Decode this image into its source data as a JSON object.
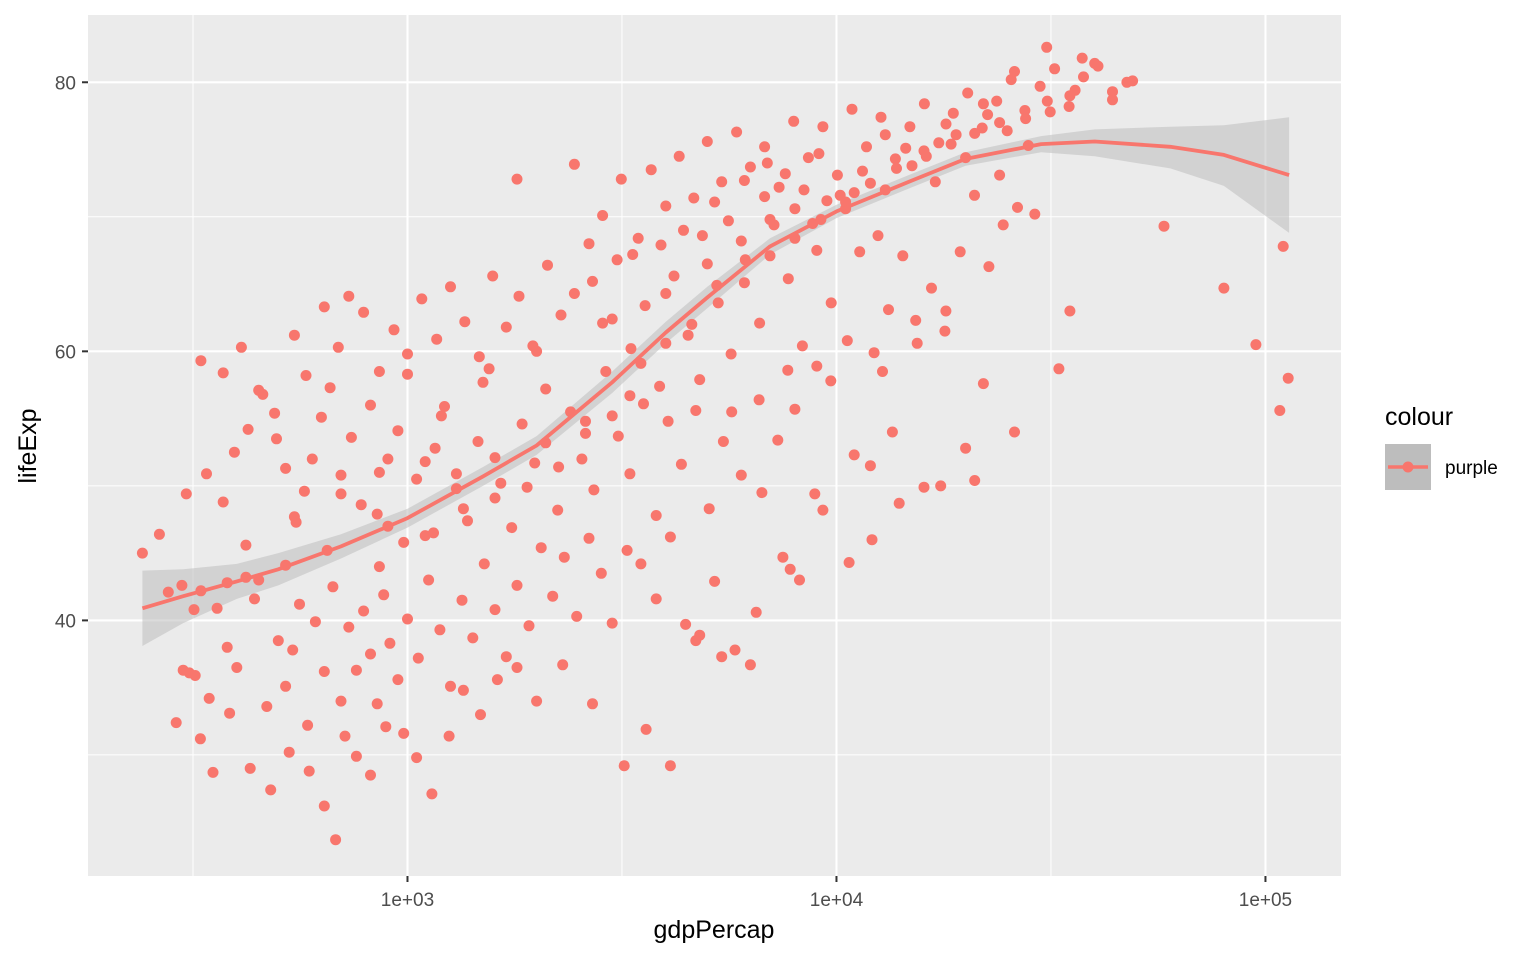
{
  "chart_data": {
    "type": "scatter",
    "title": "",
    "xlabel": "gdpPercap",
    "ylabel": "lifeExp",
    "x_scale": "log10",
    "xlim": [
      180,
      150000
    ],
    "ylim": [
      21,
      85
    ],
    "x_ticks": [
      1000,
      10000,
      100000
    ],
    "x_tick_labels": [
      "1e+03",
      "1e+04",
      "1e+05"
    ],
    "y_ticks": [
      40,
      60,
      80
    ],
    "y_tick_labels": [
      "40",
      "60",
      "80"
    ],
    "grid": true,
    "point_color": "#F8766D",
    "smooth_color": "#F8766D",
    "ribbon_color": "#bdbdbd",
    "panel_background": "#EBEBEB",
    "legend": {
      "title": "colour",
      "position": "right",
      "entries": [
        "purple"
      ]
    },
    "smooth": {
      "x": [
        241,
        300,
        400,
        500,
        700,
        1000,
        1500,
        2000,
        3000,
        4000,
        5000,
        7000,
        10000,
        15000,
        20000,
        30000,
        40000,
        60000,
        80000,
        113500
      ],
      "y": [
        40.9,
        41.8,
        42.9,
        43.8,
        45.5,
        47.6,
        50.7,
        53.0,
        57.7,
        61.4,
        64.0,
        67.8,
        70.4,
        72.7,
        74.3,
        75.4,
        75.6,
        75.2,
        74.6,
        73.1
      ],
      "upper": [
        43.7,
        43.8,
        44.2,
        45.0,
        46.4,
        48.3,
        51.4,
        53.7,
        58.5,
        62.2,
        64.8,
        68.4,
        70.9,
        73.2,
        74.8,
        76.0,
        76.5,
        76.7,
        76.8,
        77.4
      ],
      "lower": [
        38.1,
        39.8,
        41.6,
        42.6,
        44.6,
        46.9,
        50.0,
        52.3,
        56.9,
        60.6,
        63.2,
        67.2,
        69.9,
        72.2,
        73.8,
        74.8,
        74.5,
        73.6,
        72.3,
        68.8
      ]
    },
    "points": [
      [
        241,
        45.0
      ],
      [
        277,
        42.1
      ],
      [
        298,
        42.6
      ],
      [
        310,
        36.1
      ],
      [
        318,
        40.8
      ],
      [
        320,
        35.9
      ],
      [
        330,
        42.2
      ],
      [
        345,
        34.2
      ],
      [
        360,
        40.9
      ],
      [
        380,
        38.0
      ],
      [
        400,
        36.5
      ],
      [
        420,
        43.2
      ],
      [
        440,
        41.6
      ],
      [
        470,
        33.6
      ],
      [
        500,
        38.5
      ],
      [
        520,
        35.1
      ],
      [
        540,
        37.8
      ],
      [
        560,
        41.2
      ],
      [
        585,
        32.2
      ],
      [
        610,
        39.9
      ],
      [
        640,
        36.2
      ],
      [
        670,
        42.5
      ],
      [
        700,
        34.0
      ],
      [
        730,
        39.5
      ],
      [
        760,
        36.3
      ],
      [
        790,
        40.7
      ],
      [
        820,
        37.5
      ],
      [
        850,
        33.8
      ],
      [
        880,
        41.9
      ],
      [
        910,
        38.3
      ],
      [
        950,
        35.6
      ],
      [
        1000,
        40.1
      ],
      [
        1060,
        37.2
      ],
      [
        1120,
        43.0
      ],
      [
        1190,
        39.3
      ],
      [
        1260,
        35.1
      ],
      [
        1340,
        41.5
      ],
      [
        1420,
        38.7
      ],
      [
        1510,
        44.2
      ],
      [
        1600,
        40.8
      ],
      [
        1700,
        37.3
      ],
      [
        1800,
        42.6
      ],
      [
        1920,
        39.6
      ],
      [
        2050,
        45.4
      ],
      [
        2180,
        41.8
      ],
      [
        2320,
        44.7
      ],
      [
        2480,
        40.3
      ],
      [
        2650,
        46.1
      ],
      [
        2830,
        43.5
      ],
      [
        3000,
        39.8
      ],
      [
        3250,
        45.2
      ],
      [
        3500,
        44.2
      ],
      [
        3800,
        41.6
      ],
      [
        4100,
        46.2
      ],
      [
        4450,
        39.7
      ],
      [
        4800,
        38.9
      ],
      [
        5200,
        42.9
      ],
      [
        5800,
        37.8
      ],
      [
        6500,
        40.6
      ],
      [
        7500,
        44.7
      ],
      [
        8200,
        43.0
      ],
      [
        9300,
        48.2
      ],
      [
        10700,
        44.3
      ],
      [
        12100,
        46.0
      ],
      [
        14000,
        48.7
      ],
      [
        17500,
        50.0
      ],
      [
        21000,
        50.4
      ],
      [
        264,
        46.4
      ],
      [
        289,
        32.4
      ],
      [
        300,
        36.3
      ],
      [
        329,
        31.2
      ],
      [
        352,
        28.7
      ],
      [
        385,
        33.1
      ],
      [
        430,
        29.0
      ],
      [
        480,
        27.4
      ],
      [
        530,
        30.2
      ],
      [
        590,
        28.8
      ],
      [
        640,
        26.2
      ],
      [
        680,
        23.7
      ],
      [
        715,
        31.4
      ],
      [
        760,
        29.9
      ],
      [
        820,
        28.5
      ],
      [
        890,
        32.1
      ],
      [
        980,
        31.6
      ],
      [
        1050,
        29.8
      ],
      [
        1140,
        27.1
      ],
      [
        1250,
        31.4
      ],
      [
        1350,
        34.8
      ],
      [
        1480,
        33.0
      ],
      [
        1620,
        35.6
      ],
      [
        1800,
        36.5
      ],
      [
        2000,
        34.0
      ],
      [
        2300,
        36.7
      ],
      [
        2700,
        33.8
      ],
      [
        3200,
        29.2
      ],
      [
        3600,
        31.9
      ],
      [
        4100,
        29.2
      ],
      [
        4700,
        38.5
      ],
      [
        5400,
        37.3
      ],
      [
        6300,
        36.7
      ],
      [
        7800,
        43.8
      ],
      [
        305,
        49.4
      ],
      [
        340,
        50.9
      ],
      [
        372,
        48.8
      ],
      [
        395,
        52.5
      ],
      [
        425,
        54.2
      ],
      [
        460,
        56.8
      ],
      [
        495,
        53.5
      ],
      [
        520,
        51.3
      ],
      [
        545,
        47.7
      ],
      [
        575,
        49.6
      ],
      [
        600,
        52.0
      ],
      [
        630,
        55.1
      ],
      [
        660,
        57.3
      ],
      [
        700,
        50.8
      ],
      [
        740,
        53.6
      ],
      [
        780,
        48.6
      ],
      [
        820,
        56.0
      ],
      [
        860,
        51.0
      ],
      [
        900,
        47.0
      ],
      [
        950,
        54.1
      ],
      [
        1000,
        58.3
      ],
      [
        1050,
        50.5
      ],
      [
        1100,
        46.3
      ],
      [
        1160,
        52.8
      ],
      [
        1220,
        55.9
      ],
      [
        1300,
        49.8
      ],
      [
        1380,
        47.4
      ],
      [
        1460,
        53.3
      ],
      [
        1550,
        58.7
      ],
      [
        1650,
        50.2
      ],
      [
        1750,
        46.9
      ],
      [
        1850,
        54.6
      ],
      [
        1980,
        51.7
      ],
      [
        2100,
        57.2
      ],
      [
        2240,
        48.2
      ],
      [
        2400,
        55.5
      ],
      [
        2550,
        52.0
      ],
      [
        2720,
        49.7
      ],
      [
        2900,
        58.5
      ],
      [
        3100,
        53.7
      ],
      [
        3300,
        50.9
      ],
      [
        3550,
        56.1
      ],
      [
        3800,
        47.8
      ],
      [
        4050,
        54.8
      ],
      [
        4350,
        51.6
      ],
      [
        4700,
        55.6
      ],
      [
        5050,
        48.3
      ],
      [
        5450,
        53.3
      ],
      [
        6000,
        50.8
      ],
      [
        6700,
        49.5
      ],
      [
        7300,
        53.4
      ],
      [
        8000,
        55.7
      ],
      [
        8900,
        49.4
      ],
      [
        9700,
        57.8
      ],
      [
        11000,
        52.3
      ],
      [
        12000,
        51.5
      ],
      [
        13500,
        54.0
      ],
      [
        16000,
        49.9
      ],
      [
        20000,
        52.8
      ],
      [
        22000,
        57.6
      ],
      [
        26000,
        54.0
      ],
      [
        33000,
        58.7
      ],
      [
        330,
        59.3
      ],
      [
        372,
        58.4
      ],
      [
        410,
        60.3
      ],
      [
        450,
        57.1
      ],
      [
        490,
        55.4
      ],
      [
        545,
        61.2
      ],
      [
        580,
        58.2
      ],
      [
        640,
        63.3
      ],
      [
        690,
        60.3
      ],
      [
        730,
        64.1
      ],
      [
        790,
        62.9
      ],
      [
        860,
        58.5
      ],
      [
        930,
        61.6
      ],
      [
        1000,
        59.8
      ],
      [
        1080,
        63.9
      ],
      [
        1170,
        60.9
      ],
      [
        1260,
        64.8
      ],
      [
        1360,
        62.2
      ],
      [
        1470,
        59.6
      ],
      [
        1580,
        65.6
      ],
      [
        1700,
        61.8
      ],
      [
        1820,
        64.1
      ],
      [
        1960,
        60.4
      ],
      [
        2120,
        66.4
      ],
      [
        2280,
        62.7
      ],
      [
        2450,
        64.3
      ],
      [
        2650,
        68.0
      ],
      [
        2850,
        62.1
      ],
      [
        3080,
        66.8
      ],
      [
        3320,
        60.2
      ],
      [
        3580,
        63.4
      ],
      [
        3870,
        57.4
      ],
      [
        4180,
        65.6
      ],
      [
        4510,
        61.2
      ],
      [
        4870,
        68.6
      ],
      [
        5260,
        64.9
      ],
      [
        5680,
        59.8
      ],
      [
        6130,
        66.8
      ],
      [
        6620,
        62.1
      ],
      [
        7150,
        69.4
      ],
      [
        7720,
        65.4
      ],
      [
        8330,
        60.4
      ],
      [
        9000,
        67.5
      ],
      [
        9720,
        63.6
      ],
      [
        10500,
        70.6
      ],
      [
        11330,
        67.4
      ],
      [
        12240,
        59.9
      ],
      [
        13220,
        63.1
      ],
      [
        14280,
        67.1
      ],
      [
        15420,
        60.6
      ],
      [
        16650,
        64.7
      ],
      [
        17990,
        63.0
      ],
      [
        19430,
        67.4
      ],
      [
        20980,
        71.6
      ],
      [
        22660,
        66.3
      ],
      [
        24470,
        69.4
      ],
      [
        26430,
        70.7
      ],
      [
        29000,
        70.2
      ],
      [
        35000,
        63.0
      ],
      [
        58000,
        69.3
      ],
      [
        80000,
        64.7
      ],
      [
        95000,
        60.5
      ],
      [
        108000,
        55.6
      ],
      [
        110000,
        67.8
      ],
      [
        113000,
        58.0
      ],
      [
        1800,
        72.8
      ],
      [
        2450,
        73.9
      ],
      [
        2850,
        70.1
      ],
      [
        3150,
        72.8
      ],
      [
        3450,
        68.4
      ],
      [
        3700,
        73.5
      ],
      [
        4000,
        70.8
      ],
      [
        4300,
        74.5
      ],
      [
        4650,
        71.4
      ],
      [
        5000,
        75.6
      ],
      [
        5400,
        72.6
      ],
      [
        5850,
        76.3
      ],
      [
        6300,
        73.7
      ],
      [
        6800,
        75.2
      ],
      [
        7350,
        72.2
      ],
      [
        7950,
        77.1
      ],
      [
        8600,
        74.4
      ],
      [
        9300,
        76.7
      ],
      [
        10050,
        73.1
      ],
      [
        10870,
        78.0
      ],
      [
        11750,
        75.2
      ],
      [
        12700,
        77.4
      ],
      [
        13720,
        74.3
      ],
      [
        14830,
        76.7
      ],
      [
        16030,
        78.4
      ],
      [
        17320,
        75.5
      ],
      [
        18720,
        77.7
      ],
      [
        20230,
        79.2
      ],
      [
        21860,
        76.6
      ],
      [
        23630,
        78.6
      ],
      [
        25540,
        80.2
      ],
      [
        27600,
        77.3
      ],
      [
        29830,
        79.7
      ],
      [
        32240,
        81.0
      ],
      [
        34850,
        78.2
      ],
      [
        37660,
        80.4
      ],
      [
        40700,
        81.2
      ],
      [
        43990,
        79.3
      ],
      [
        47540,
        80.0
      ],
      [
        49000,
        80.1
      ],
      [
        30900,
        82.6
      ],
      [
        37400,
        81.8
      ],
      [
        40000,
        81.4
      ],
      [
        36000,
        79.4
      ],
      [
        26000,
        80.8
      ],
      [
        22000,
        78.4
      ],
      [
        19000,
        76.1
      ],
      [
        15000,
        73.8
      ],
      [
        13000,
        72.0
      ],
      [
        11000,
        71.8
      ],
      [
        9500,
        71.2
      ],
      [
        8000,
        70.6
      ],
      [
        7000,
        69.8
      ],
      [
        6000,
        68.2
      ],
      [
        5000,
        66.5
      ],
      [
        4000,
        64.3
      ],
      [
        3000,
        62.4
      ],
      [
        2000,
        60.0
      ],
      [
        1500,
        57.7
      ],
      [
        1200,
        55.2
      ],
      [
        900,
        52.0
      ],
      [
        700,
        49.4
      ],
      [
        550,
        47.3
      ],
      [
        420,
        45.6
      ],
      [
        3900,
        67.9
      ],
      [
        4400,
        69.0
      ],
      [
        5200,
        71.1
      ],
      [
        6100,
        72.7
      ],
      [
        6900,
        74.0
      ],
      [
        7600,
        73.2
      ],
      [
        8400,
        72.0
      ],
      [
        9100,
        74.7
      ],
      [
        10200,
        71.6
      ],
      [
        11500,
        73.4
      ],
      [
        13000,
        76.1
      ],
      [
        14500,
        75.1
      ],
      [
        16200,
        74.5
      ],
      [
        18000,
        76.9
      ],
      [
        20000,
        74.4
      ],
      [
        22500,
        77.6
      ],
      [
        25000,
        76.4
      ],
      [
        28000,
        75.3
      ],
      [
        31500,
        77.8
      ],
      [
        2700,
        65.2
      ],
      [
        3350,
        67.2
      ],
      [
        5600,
        69.7
      ],
      [
        6800,
        71.5
      ],
      [
        8800,
        69.5
      ],
      [
        12500,
        68.6
      ],
      [
        17000,
        72.6
      ],
      [
        24000,
        73.1
      ],
      [
        4800,
        57.9
      ],
      [
        5700,
        55.5
      ],
      [
        6600,
        56.4
      ],
      [
        7700,
        58.6
      ],
      [
        9000,
        58.9
      ],
      [
        10600,
        60.8
      ],
      [
        12800,
        58.5
      ],
      [
        15300,
        62.3
      ],
      [
        17900,
        61.5
      ],
      [
        3300,
        56.7
      ],
      [
        2600,
        54.8
      ],
      [
        2100,
        53.2
      ],
      [
        1600,
        52.1
      ],
      [
        1300,
        50.9
      ],
      [
        1100,
        51.8
      ],
      [
        850,
        47.9
      ],
      [
        650,
        45.2
      ],
      [
        520,
        44.1
      ],
      [
        450,
        43.0
      ],
      [
        380,
        42.8
      ],
      [
        860,
        44.0
      ],
      [
        980,
        45.8
      ],
      [
        1150,
        46.5
      ],
      [
        1350,
        48.3
      ],
      [
        1600,
        49.1
      ],
      [
        1900,
        49.9
      ],
      [
        2250,
        51.4
      ],
      [
        2600,
        53.9
      ],
      [
        3000,
        55.2
      ],
      [
        3500,
        59.1
      ],
      [
        4000,
        60.6
      ],
      [
        4600,
        62.0
      ],
      [
        5300,
        63.6
      ],
      [
        6100,
        65.1
      ],
      [
        7000,
        67.1
      ],
      [
        8000,
        68.4
      ],
      [
        9200,
        69.8
      ],
      [
        10500,
        71.1
      ],
      [
        12000,
        72.5
      ],
      [
        13800,
        73.6
      ],
      [
        16000,
        74.9
      ],
      [
        18500,
        75.4
      ],
      [
        21000,
        76.2
      ],
      [
        24000,
        77.0
      ],
      [
        27500,
        77.9
      ],
      [
        31000,
        78.6
      ],
      [
        35000,
        79.0
      ],
      [
        44000,
        78.7
      ]
    ]
  }
}
